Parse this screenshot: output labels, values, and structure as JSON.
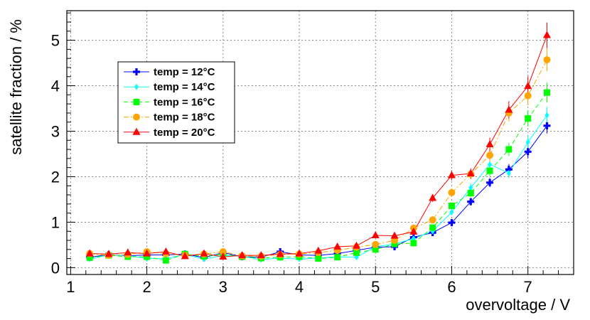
{
  "chart_data": {
    "type": "scatter",
    "title": "",
    "xlabel": "overvoltage / V",
    "ylabel": "satellite fraction / %",
    "xlim": [
      0.95,
      7.6
    ],
    "ylim": [
      -0.15,
      5.65
    ],
    "xticks": [
      "1",
      "2",
      "3",
      "4",
      "5",
      "6",
      "7"
    ],
    "yticks": [
      "0",
      "1",
      "2",
      "3",
      "4",
      "5"
    ],
    "grid": true,
    "legend_position": "top-left",
    "x": [
      1.25,
      1.5,
      1.75,
      2.0,
      2.25,
      2.5,
      2.75,
      3.0,
      3.25,
      3.5,
      3.75,
      4.0,
      4.25,
      4.5,
      4.75,
      5.0,
      5.25,
      5.5,
      5.75,
      6.0,
      6.25,
      6.5,
      6.75,
      7.0,
      7.25
    ],
    "series": [
      {
        "name": "temp = 12°C",
        "color": "#0000ff",
        "marker": "cross",
        "line": "solid",
        "values": [
          0.23,
          0.29,
          0.26,
          0.28,
          0.28,
          0.3,
          0.22,
          0.33,
          0.24,
          0.23,
          0.35,
          0.28,
          0.27,
          0.31,
          0.38,
          0.45,
          0.46,
          0.67,
          0.77,
          0.99,
          1.45,
          1.87,
          2.16,
          2.55,
          3.12
        ],
        "errors": [
          0.03,
          0.03,
          0.03,
          0.03,
          0.03,
          0.03,
          0.03,
          0.03,
          0.03,
          0.03,
          0.05,
          0.03,
          0.03,
          0.03,
          0.04,
          0.04,
          0.04,
          0.05,
          0.06,
          0.07,
          0.08,
          0.1,
          0.12,
          0.15,
          0.17
        ]
      },
      {
        "name": "temp = 14°C",
        "color": "#00ffff",
        "marker": "diamond",
        "line": "solid",
        "values": [
          0.19,
          0.28,
          0.27,
          0.2,
          0.2,
          0.29,
          0.19,
          0.27,
          0.25,
          0.18,
          0.21,
          0.19,
          0.21,
          0.24,
          0.23,
          0.46,
          0.52,
          0.64,
          0.8,
          1.22,
          1.76,
          2.27,
          2.08,
          2.76,
          3.35
        ]
      },
      {
        "name": "temp = 16°C",
        "color": "#00ff00",
        "marker": "square",
        "line": "dashed",
        "values": [
          0.22,
          0.27,
          0.24,
          0.24,
          0.16,
          0.3,
          0.25,
          0.3,
          0.24,
          0.21,
          0.23,
          0.24,
          0.2,
          0.23,
          0.33,
          0.4,
          0.52,
          0.54,
          0.88,
          1.36,
          1.64,
          2.13,
          2.6,
          3.28,
          3.85
        ]
      },
      {
        "name": "temp = 18°C",
        "color": "#ffa500",
        "marker": "circle",
        "line": "dashdot",
        "values": [
          0.31,
          0.27,
          0.29,
          0.35,
          0.31,
          0.27,
          0.3,
          0.35,
          0.26,
          0.25,
          0.29,
          0.3,
          0.33,
          0.38,
          0.45,
          0.51,
          0.6,
          0.87,
          1.05,
          1.65,
          2.06,
          2.47,
          3.4,
          3.78,
          4.57
        ]
      },
      {
        "name": "temp = 20°C",
        "color": "#ff0000",
        "marker": "triangle",
        "line": "solid",
        "values": [
          0.31,
          0.3,
          0.33,
          0.31,
          0.35,
          0.25,
          0.31,
          0.24,
          0.27,
          0.27,
          0.3,
          0.31,
          0.37,
          0.46,
          0.48,
          0.71,
          0.7,
          0.79,
          1.53,
          2.03,
          2.07,
          2.71,
          3.47,
          3.99,
          5.11
        ]
      }
    ]
  }
}
